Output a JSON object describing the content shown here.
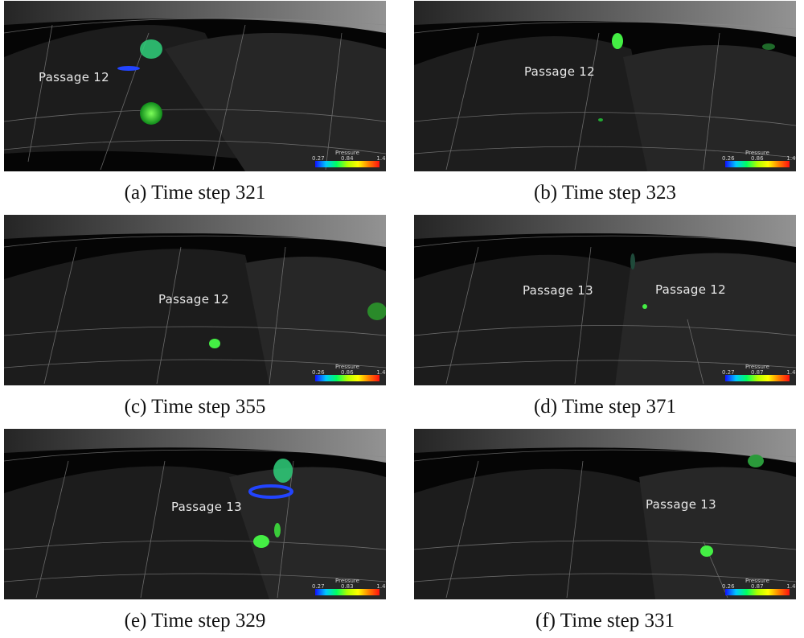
{
  "panels": [
    {
      "caption": "(a) Time step 321",
      "labels": [
        "Passage 12"
      ],
      "legend": {
        "title": "Pressure",
        "min": "0.27",
        "mid": "0.84",
        "max": "1.46"
      }
    },
    {
      "caption": "(b) Time step 323",
      "labels": [
        "Passage 12"
      ],
      "legend": {
        "title": "Pressure",
        "min": "0.26",
        "mid": "0.86",
        "max": "1.46"
      }
    },
    {
      "caption": "(c) Time step 355",
      "labels": [
        "Passage 12"
      ],
      "legend": {
        "title": "Pressure",
        "min": "0.26",
        "mid": "0.86",
        "max": "1.46"
      }
    },
    {
      "caption": "(d) Time step 371",
      "labels": [
        "Passage 13",
        "Passage 12"
      ],
      "legend": {
        "title": "Pressure",
        "min": "0.27",
        "mid": "0.87",
        "max": "1.46"
      }
    },
    {
      "caption": "(e) Time step 329",
      "labels": [
        "Passage 13"
      ],
      "legend": {
        "title": "Pressure",
        "min": "0.27",
        "mid": "0.83",
        "max": "1.46"
      }
    },
    {
      "caption": "(f) Time step 331",
      "labels": [
        "Passage 13"
      ],
      "legend": {
        "title": "Pressure",
        "min": "0.26",
        "mid": "0.87",
        "max": "1.48"
      }
    }
  ],
  "colors": {
    "background": "#000000",
    "blade": "#2a2a2a",
    "mesh_line": "#9a9a9a",
    "vortex_green": "#33dd33",
    "vortex_blue": "#2244ff"
  }
}
